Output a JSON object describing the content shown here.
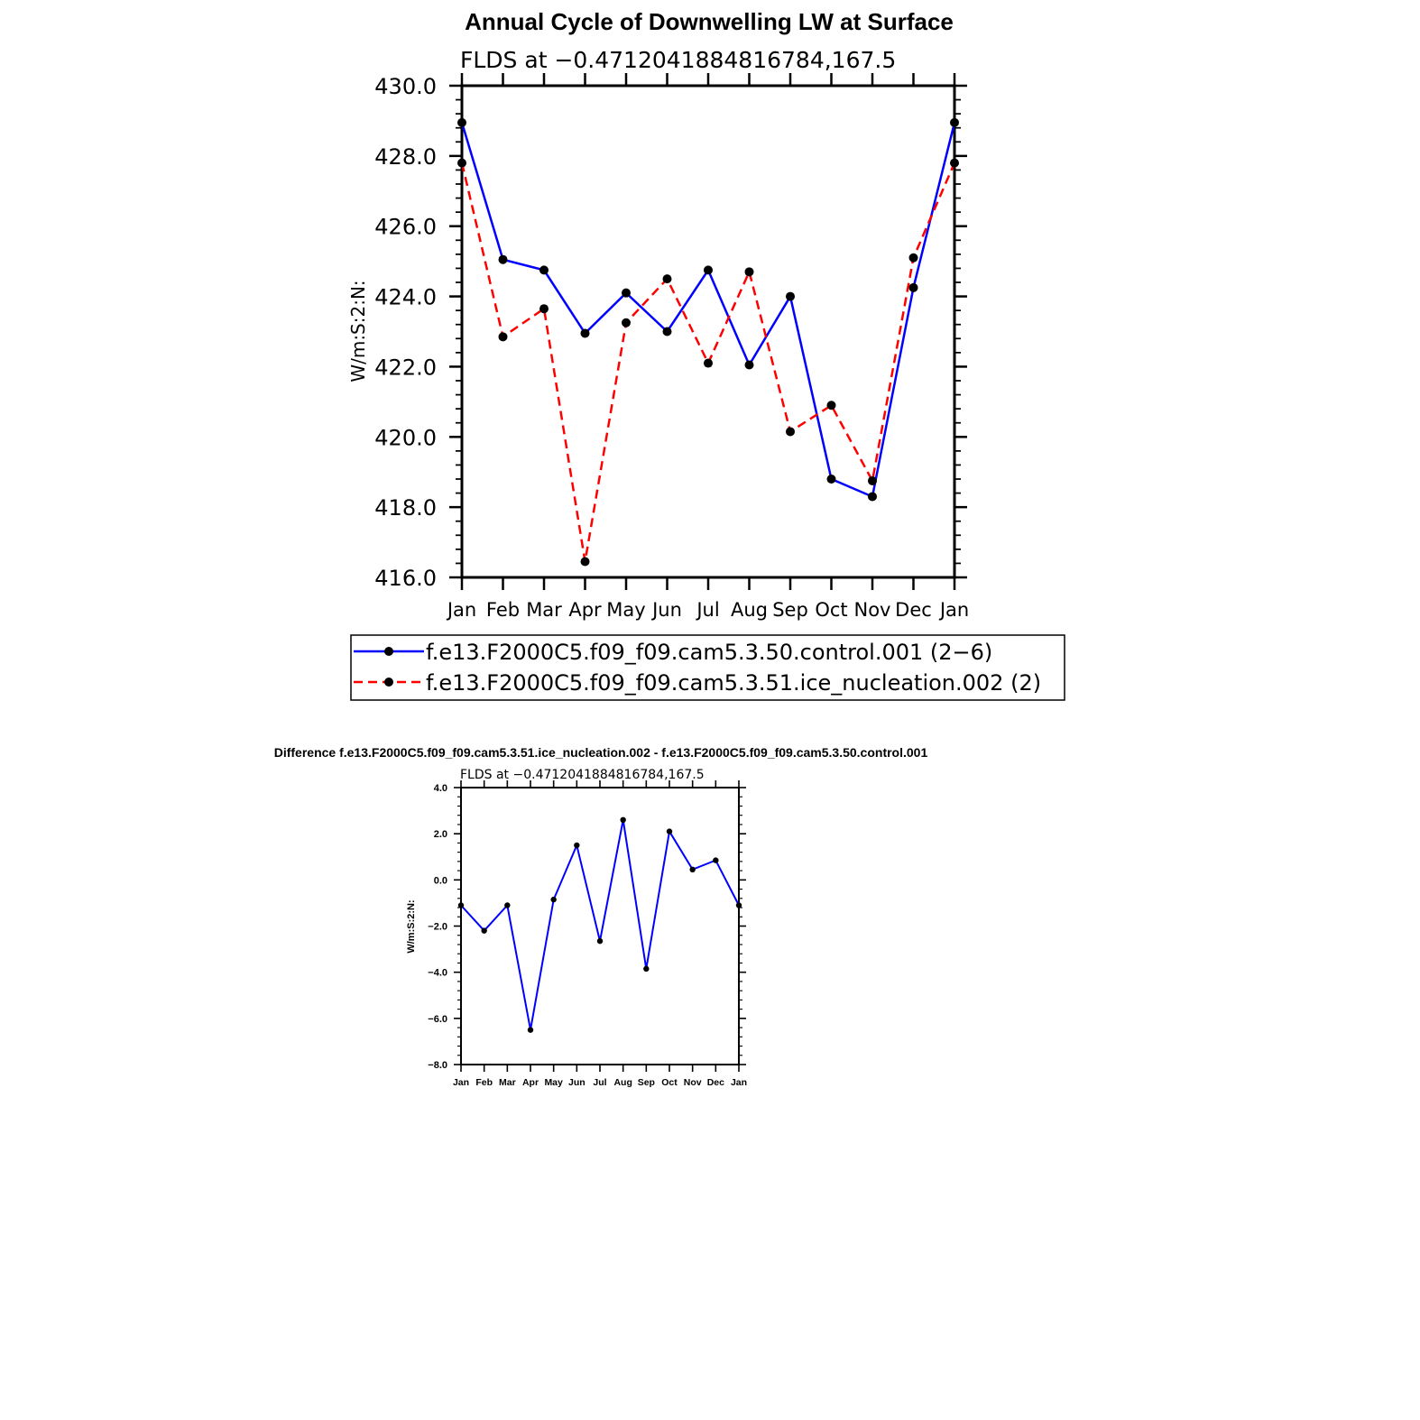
{
  "chart_data": [
    {
      "type": "line",
      "title": "Annual Cycle of Downwelling LW at Surface",
      "subtitle": "FLDS at −0.4712041884816784,167.5",
      "ylabel": "W/m:S:2:N:",
      "xlabel": "",
      "ylim": [
        416.0,
        430.0
      ],
      "yticks": [
        "416.0",
        "418.0",
        "420.0",
        "422.0",
        "424.0",
        "426.0",
        "428.0",
        "430.0"
      ],
      "categories": [
        "Jan",
        "Feb",
        "Mar",
        "Apr",
        "May",
        "Jun",
        "Jul",
        "Aug",
        "Sep",
        "Oct",
        "Nov",
        "Dec",
        "Jan"
      ],
      "grid": false,
      "legend": "below",
      "series": [
        {
          "name": "f.e13.F2000C5.f09_f09.cam5.3.50.control.001 (2−6)",
          "color": "#0000ff",
          "style": "solid",
          "values": [
            428.95,
            425.05,
            424.75,
            422.95,
            424.1,
            423.0,
            424.75,
            422.05,
            424.0,
            418.8,
            418.3,
            424.25,
            428.95
          ]
        },
        {
          "name": "f.e13.F2000C5.f09_f09.cam5.3.51.ice_nucleation.002 (2)",
          "color": "#ff0000",
          "style": "dashed",
          "values": [
            427.8,
            422.85,
            423.65,
            416.45,
            423.25,
            424.5,
            422.1,
            424.7,
            420.15,
            420.9,
            418.75,
            425.1,
            427.8
          ]
        }
      ]
    },
    {
      "type": "line",
      "title": "Difference f.e13.F2000C5.f09_f09.cam5.3.51.ice_nucleation.002 - f.e13.F2000C5.f09_f09.cam5.3.50.control.001",
      "subtitle": "FLDS at −0.4712041884816784,167.5",
      "ylabel": "W/m:S:2:N:",
      "xlabel": "",
      "ylim": [
        -8.0,
        4.0
      ],
      "yticks": [
        "−8.0",
        "−6.0",
        "−4.0",
        "−2.0",
        "0.0",
        "2.0",
        "4.0"
      ],
      "categories": [
        "Jan",
        "Feb",
        "Mar",
        "Apr",
        "May",
        "Jun",
        "Jul",
        "Aug",
        "Sep",
        "Oct",
        "Nov",
        "Dec",
        "Jan"
      ],
      "grid": false,
      "series": [
        {
          "color": "#0000ff",
          "style": "solid",
          "values": [
            -1.1,
            -2.2,
            -1.1,
            -6.5,
            -0.85,
            1.5,
            -2.65,
            2.6,
            -3.85,
            2.1,
            0.45,
            0.85,
            -1.1
          ]
        }
      ]
    }
  ]
}
